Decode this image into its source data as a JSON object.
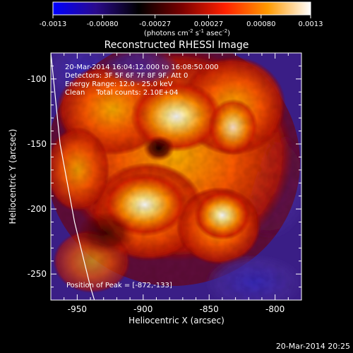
{
  "colorbar": {
    "tick_labels": [
      "-0.0013",
      "-0.00080",
      "-0.00027",
      "0.00027",
      "0.00080",
      "0.0013"
    ],
    "range": [
      -0.0013,
      0.0013
    ],
    "units_main": "(photons cm",
    "units_sup1": "-2",
    "units_mid1": " s",
    "units_sup2": "-1",
    "units_mid2": " asec",
    "units_sup3": "-2",
    "units_end": ")",
    "colors": [
      "#0000ff",
      "#2a0a8c",
      "#000000",
      "#7a0000",
      "#ff2000",
      "#ff9a00",
      "#ffffff"
    ]
  },
  "chart_data": {
    "type": "heatmap",
    "title": "Reconstructed RHESSI Image",
    "xlabel": "Heliocentric X (arcsec)",
    "ylabel": "Heliocentric Y (arcsec)",
    "xlim": [
      -970,
      -780
    ],
    "ylim": [
      -270,
      -80
    ],
    "x_ticks": [
      -950,
      -900,
      -850,
      -800
    ],
    "y_ticks": [
      -100,
      -150,
      -200,
      -250
    ],
    "x_tick_labels": [
      "-950",
      "-900",
      "-850",
      "-800"
    ],
    "y_tick_labels": [
      "-100",
      "-150",
      "-200",
      "-250"
    ],
    "info_lines": [
      "20-Mar-2014 16:04:12.000 to 16:08:50.000",
      "Detectors: 3F 5F 6F 7F 8F 9F, Att 0",
      "Energy Range: 12.0 - 25.0 keV",
      "Clean     Total counts: 2.10E+04"
    ],
    "peak_label": "Position of Peak = [-872,-133]",
    "peak_position": [
      -872,
      -133
    ],
    "limb_curve": [
      [
        -970,
        -80
      ],
      [
        -963,
        -150
      ],
      [
        -952,
        -210
      ],
      [
        -940,
        -260
      ],
      [
        -937,
        -270
      ]
    ]
  },
  "footer": {
    "timestamp": "20-Mar-2014 20:25"
  }
}
